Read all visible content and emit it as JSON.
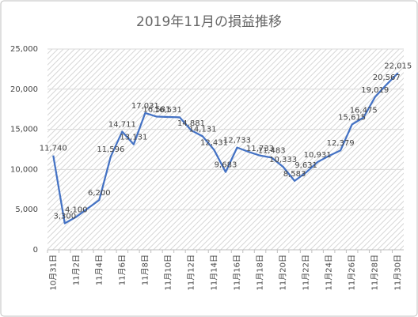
{
  "chart_data": {
    "type": "line",
    "title": "2019年11月の損益推移",
    "categories": [
      "10月31日",
      null,
      "11月2日",
      null,
      "11月4日",
      null,
      "11月6日",
      null,
      "11月8日",
      null,
      "11月10日",
      null,
      "11月12日",
      null,
      "11月14日",
      null,
      "11月16日",
      null,
      "11月18日",
      null,
      "11月20日",
      null,
      "11月22日",
      null,
      "11月24日",
      null,
      "11月26日",
      null,
      "11月28日",
      null,
      "11月30日"
    ],
    "series": [
      {
        "name": "損益",
        "color": "#4472c4",
        "values": [
          11740,
          3300,
          4100,
          5150,
          6200,
          11596,
          14711,
          13131,
          17031,
          16581,
          16531,
          16500,
          14881,
          14131,
          12431,
          9683,
          12733,
          12200,
          11733,
          11483,
          10333,
          8583,
          9631,
          10931,
          11700,
          12379,
          15615,
          16475,
          19019,
          20567,
          22015
        ],
        "value_labels": [
          "11,740",
          "3,300",
          "4,100",
          null,
          "6,200",
          "11,596",
          "14,711",
          "13,131",
          "17,031",
          "16,581",
          "16,531",
          null,
          "14,881",
          "14,131",
          "12,431",
          "9,683",
          "12,733",
          null,
          "11,733",
          "11,483",
          "10,333",
          "8,583",
          "9,631",
          "10,931",
          null,
          "12,379",
          "15,615",
          "16,475",
          "19,019",
          "20,567",
          "22,015"
        ]
      }
    ],
    "ylim": [
      0,
      25000
    ],
    "yticks": [
      0,
      {
        "value": 5000,
        "label": "5,000"
      },
      {
        "value": 10000,
        "label": "10,000"
      },
      {
        "value": 15000,
        "label": "15,000"
      },
      {
        "value": 20000,
        "label": "20,000"
      },
      {
        "value": 25000,
        "label": "25,000"
      }
    ],
    "grid": true
  }
}
